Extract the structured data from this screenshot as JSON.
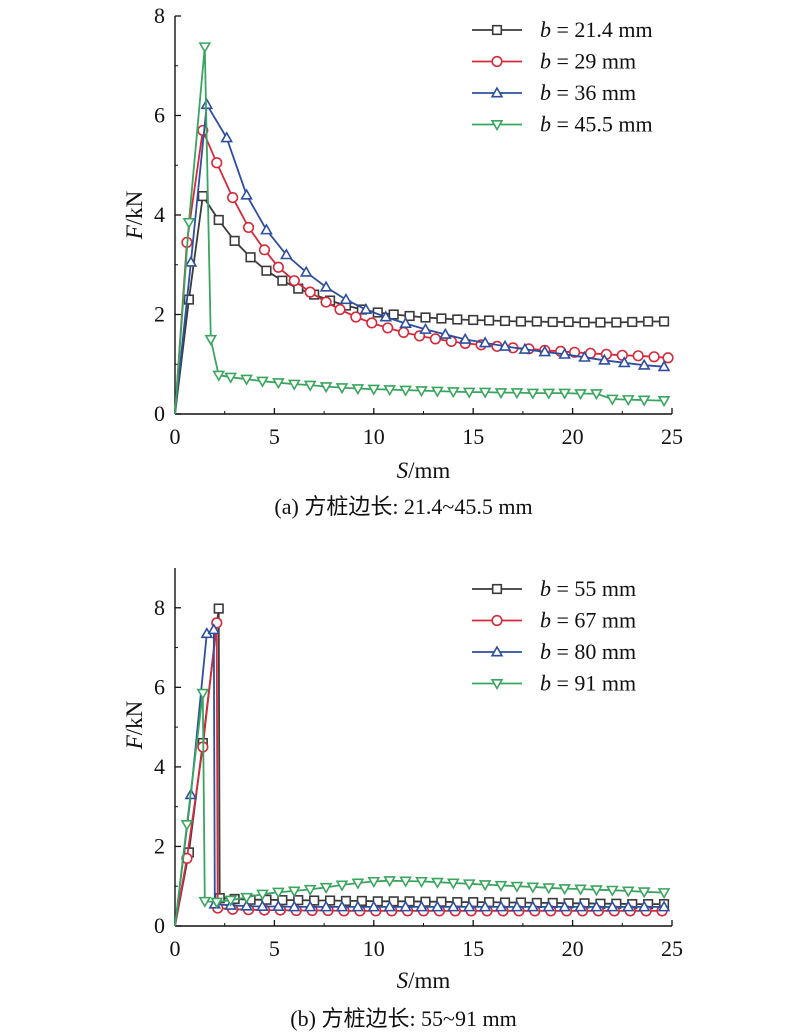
{
  "chart_data": [
    {
      "type": "line",
      "caption": "(a) 方桩边长: 21.4~45.5 mm",
      "xlabel_italic": "S",
      "xlabel_unit": "/mm",
      "ylabel_italic": "F",
      "ylabel_unit": "/kN",
      "xlim": [
        0,
        25
      ],
      "ylim": [
        0,
        8
      ],
      "xticks": [
        0,
        5,
        10,
        15,
        20,
        25
      ],
      "yticks": [
        0,
        2,
        4,
        6,
        8
      ],
      "grid": false,
      "legend_position": "top-right",
      "series": [
        {
          "name": "b = 21.4 mm",
          "legend_var": "b",
          "legend_rest": " = 21.4 mm",
          "color": "#3a3a3a",
          "marker": "square",
          "x": [
            0,
            0.7,
            1.4,
            2.2,
            3.0,
            3.8,
            4.6,
            5.4,
            6.2,
            7.0,
            7.8,
            8.6,
            9.4,
            10.2,
            11.0,
            11.8,
            12.6,
            13.4,
            14.2,
            15.0,
            15.8,
            16.6,
            17.4,
            18.2,
            19.0,
            19.8,
            20.6,
            21.4,
            22.2,
            23.0,
            23.8,
            24.6
          ],
          "y": [
            0,
            2.3,
            4.38,
            3.9,
            3.48,
            3.15,
            2.88,
            2.68,
            2.52,
            2.4,
            2.28,
            2.18,
            2.1,
            2.04,
            2.0,
            1.97,
            1.94,
            1.92,
            1.9,
            1.89,
            1.88,
            1.87,
            1.86,
            1.86,
            1.85,
            1.85,
            1.84,
            1.84,
            1.84,
            1.85,
            1.86,
            1.86
          ]
        },
        {
          "name": "b = 29 mm",
          "legend_var": "b",
          "legend_rest": " = 29 mm",
          "color": "#d42a3a",
          "marker": "circle",
          "x": [
            0,
            0.6,
            1.4,
            2.1,
            2.9,
            3.7,
            4.5,
            5.2,
            6.0,
            6.8,
            7.6,
            8.3,
            9.1,
            9.9,
            10.7,
            11.5,
            12.3,
            13.1,
            13.9,
            14.6,
            15.4,
            16.2,
            17.0,
            17.8,
            18.6,
            19.4,
            20.1,
            20.9,
            21.7,
            22.5,
            23.3,
            24.1,
            24.8
          ],
          "y": [
            0,
            3.45,
            5.7,
            5.05,
            4.35,
            3.75,
            3.3,
            2.95,
            2.68,
            2.45,
            2.25,
            2.1,
            1.95,
            1.83,
            1.73,
            1.64,
            1.57,
            1.51,
            1.46,
            1.42,
            1.39,
            1.36,
            1.33,
            1.31,
            1.28,
            1.26,
            1.24,
            1.22,
            1.2,
            1.18,
            1.17,
            1.15,
            1.13
          ]
        },
        {
          "name": "b = 36 mm",
          "legend_var": "b",
          "legend_rest": " = 36 mm",
          "color": "#2e4f9e",
          "marker": "triangle-up",
          "x": [
            0,
            0.8,
            1.6,
            2.6,
            3.6,
            4.6,
            5.6,
            6.6,
            7.6,
            8.6,
            9.6,
            10.6,
            11.6,
            12.6,
            13.6,
            14.6,
            15.6,
            16.6,
            17.6,
            18.6,
            19.6,
            20.6,
            21.6,
            22.6,
            23.6,
            24.6
          ],
          "y": [
            0,
            3.05,
            6.22,
            5.55,
            4.4,
            3.7,
            3.2,
            2.85,
            2.55,
            2.3,
            2.1,
            1.95,
            1.82,
            1.7,
            1.6,
            1.5,
            1.43,
            1.36,
            1.3,
            1.25,
            1.2,
            1.14,
            1.08,
            1.03,
            0.98,
            0.95
          ]
        },
        {
          "name": "b = 45.5 mm",
          "legend_var": "b",
          "legend_rest": " = 45.5 mm",
          "color": "#3aa55f",
          "marker": "triangle-down",
          "x": [
            0,
            0.7,
            1.5,
            1.8,
            2.2,
            2.8,
            3.6,
            4.4,
            5.2,
            6.0,
            6.8,
            7.6,
            8.4,
            9.2,
            10.0,
            10.8,
            11.6,
            12.4,
            13.2,
            14.0,
            14.8,
            15.6,
            16.4,
            17.2,
            18.0,
            18.8,
            19.6,
            20.4,
            21.2,
            22.0,
            22.8,
            23.6,
            24.6
          ],
          "y": [
            0,
            3.85,
            7.38,
            1.5,
            0.78,
            0.74,
            0.7,
            0.66,
            0.63,
            0.6,
            0.58,
            0.55,
            0.53,
            0.51,
            0.5,
            0.49,
            0.48,
            0.47,
            0.46,
            0.45,
            0.44,
            0.44,
            0.43,
            0.43,
            0.42,
            0.42,
            0.42,
            0.41,
            0.41,
            0.3,
            0.29,
            0.28,
            0.27
          ]
        }
      ]
    },
    {
      "type": "line",
      "caption": "(b) 方桩边长: 55~91 mm",
      "xlabel_italic": "S",
      "xlabel_unit": "/mm",
      "ylabel_italic": "F",
      "ylabel_unit": "/kN",
      "xlim": [
        0,
        25
      ],
      "ylim": [
        0,
        9
      ],
      "xticks": [
        0,
        5,
        10,
        15,
        20,
        25
      ],
      "yticks": [
        0,
        2,
        4,
        6,
        8
      ],
      "grid": false,
      "legend_position": "top-right",
      "series": [
        {
          "name": "b = 55 mm",
          "legend_var": "b",
          "legend_rest": " = 55 mm",
          "color": "#3a3a3a",
          "marker": "square",
          "x": [
            0,
            0.7,
            1.4,
            2.2,
            2.25,
            3.0,
            3.8,
            4.6,
            5.4,
            6.2,
            7.0,
            7.8,
            8.6,
            9.4,
            10.2,
            11.0,
            11.8,
            12.6,
            13.4,
            14.2,
            15.0,
            15.8,
            16.6,
            17.4,
            18.2,
            19.0,
            19.8,
            20.6,
            21.4,
            22.2,
            23.0,
            23.8,
            24.6
          ],
          "y": [
            0,
            1.85,
            4.6,
            7.98,
            0.7,
            0.68,
            0.66,
            0.66,
            0.65,
            0.65,
            0.64,
            0.64,
            0.63,
            0.63,
            0.62,
            0.62,
            0.62,
            0.61,
            0.61,
            0.6,
            0.6,
            0.6,
            0.59,
            0.59,
            0.58,
            0.58,
            0.57,
            0.57,
            0.56,
            0.56,
            0.55,
            0.55,
            0.55
          ]
        },
        {
          "name": "b = 67 mm",
          "legend_var": "b",
          "legend_rest": " = 67 mm",
          "color": "#d42a3a",
          "marker": "circle",
          "x": [
            0,
            0.6,
            1.4,
            2.1,
            2.15,
            2.9,
            3.7,
            4.5,
            5.3,
            6.1,
            6.9,
            7.7,
            8.5,
            9.3,
            10.1,
            10.9,
            11.7,
            12.5,
            13.3,
            14.1,
            14.9,
            15.7,
            16.5,
            17.3,
            18.1,
            18.9,
            19.7,
            20.5,
            21.3,
            22.1,
            22.9,
            23.7,
            24.5
          ],
          "y": [
            0,
            1.7,
            4.5,
            7.62,
            0.45,
            0.42,
            0.41,
            0.4,
            0.4,
            0.39,
            0.39,
            0.39,
            0.38,
            0.38,
            0.38,
            0.38,
            0.38,
            0.38,
            0.38,
            0.38,
            0.38,
            0.38,
            0.38,
            0.38,
            0.38,
            0.38,
            0.38,
            0.38,
            0.38,
            0.38,
            0.38,
            0.38,
            0.38
          ]
        },
        {
          "name": "b = 80 mm",
          "legend_var": "b",
          "legend_rest": " = 80 mm",
          "color": "#2e4f9e",
          "marker": "triangle-up",
          "x": [
            0,
            0.8,
            1.6,
            1.95,
            2.0,
            2.8,
            3.6,
            4.4,
            5.2,
            6.0,
            6.8,
            7.6,
            8.4,
            9.2,
            10.0,
            10.8,
            11.6,
            12.4,
            13.2,
            14.0,
            14.8,
            15.6,
            16.4,
            17.2,
            18.0,
            18.8,
            19.6,
            20.4,
            21.2,
            22.0,
            22.8,
            23.6,
            24.6
          ],
          "y": [
            0,
            3.3,
            7.35,
            7.45,
            0.55,
            0.52,
            0.5,
            0.49,
            0.49,
            0.48,
            0.48,
            0.48,
            0.48,
            0.48,
            0.48,
            0.48,
            0.48,
            0.48,
            0.48,
            0.48,
            0.48,
            0.48,
            0.48,
            0.48,
            0.48,
            0.48,
            0.48,
            0.48,
            0.48,
            0.48,
            0.48,
            0.48,
            0.48
          ]
        },
        {
          "name": "b = 91 mm",
          "legend_var": "b",
          "legend_rest": " = 91 mm",
          "color": "#3aa55f",
          "marker": "triangle-down",
          "x": [
            0,
            0.6,
            1.4,
            1.5,
            2.1,
            2.8,
            3.6,
            4.4,
            5.2,
            6.0,
            6.8,
            7.6,
            8.4,
            9.2,
            10.0,
            10.8,
            11.6,
            12.4,
            13.2,
            14.0,
            14.8,
            15.6,
            16.4,
            17.2,
            18.0,
            18.8,
            19.6,
            20.4,
            21.2,
            22.0,
            22.8,
            23.6,
            24.6
          ],
          "y": [
            0,
            2.55,
            5.85,
            0.62,
            0.6,
            0.65,
            0.72,
            0.8,
            0.85,
            0.88,
            0.92,
            0.97,
            1.03,
            1.08,
            1.12,
            1.14,
            1.13,
            1.12,
            1.1,
            1.08,
            1.06,
            1.04,
            1.02,
            1.0,
            0.98,
            0.96,
            0.94,
            0.93,
            0.91,
            0.9,
            0.88,
            0.86,
            0.84
          ]
        }
      ]
    }
  ]
}
